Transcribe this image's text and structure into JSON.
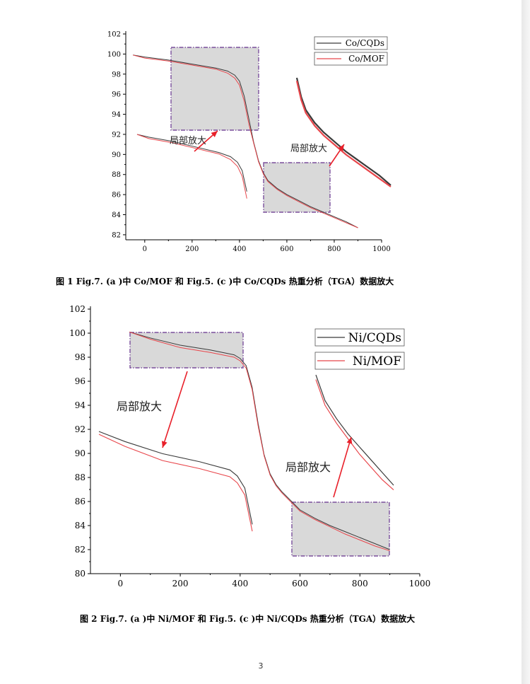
{
  "figures": [
    {
      "caption": "图 1    Fig.7. (a )中 Co/MOF 和 Fig.5. (c )中 Co/CQDs 热重分析（TGA）数据放大",
      "annotation_label": "局部放大",
      "chart_data": {
        "type": "line",
        "title": "",
        "xlabel": "",
        "ylabel": "",
        "xlim": [
          -80,
          1000
        ],
        "ylim": [
          81.5,
          102
        ],
        "x_ticks": [
          "0",
          "200",
          "400",
          "600",
          "800",
          "1000"
        ],
        "y_ticks": [
          "82",
          "84",
          "86",
          "88",
          "90",
          "92",
          "94",
          "96",
          "98",
          "100",
          "102"
        ],
        "legend_position": "top-right",
        "series": [
          {
            "name": "Co/CQDs",
            "color": "#3a3a3a",
            "x": [
              -50,
              0,
              100,
              200,
              300,
              350,
              380,
              400,
              420,
              440,
              460,
              470,
              480,
              500,
              520,
              560,
              600,
              650,
              700,
              750,
              800,
              850,
              900
            ],
            "y": [
              99.9,
              99.7,
              99.4,
              99.0,
              98.6,
              98.3,
              97.9,
              97.3,
              95.8,
              93.5,
              91.2,
              90.3,
              89.4,
              88.2,
              87.4,
              86.6,
              86.0,
              85.4,
              84.8,
              84.3,
              83.8,
              83.3,
              82.7
            ]
          },
          {
            "name": "Co/MOF",
            "color": "#e8464b",
            "x": [
              -50,
              0,
              100,
              200,
              300,
              350,
              380,
              400,
              420,
              440,
              460,
              470,
              480,
              500,
              520,
              560,
              600,
              650,
              700,
              750,
              800,
              850,
              900
            ],
            "y": [
              99.9,
              99.6,
              99.3,
              98.9,
              98.5,
              98.1,
              97.6,
              96.9,
              95.3,
              93.0,
              91.1,
              90.2,
              89.3,
              88.1,
              87.3,
              86.5,
              85.9,
              85.3,
              84.7,
              84.2,
              83.7,
              83.2,
              82.7
            ]
          }
        ]
      }
    },
    {
      "caption": "图 2    Fig.7. (a )中 Ni/MOF 和 Fig.5. (c )中 Ni/CQDs 热重分析（TGA）数据放大",
      "annotation_label": "局部放大",
      "chart_data": {
        "type": "line",
        "title": "",
        "xlabel": "",
        "ylabel": "",
        "xlim": [
          -100,
          1000
        ],
        "ylim": [
          80,
          102
        ],
        "x_ticks": [
          "0",
          "200",
          "400",
          "600",
          "800",
          "1000"
        ],
        "y_ticks": [
          "80",
          "82",
          "84",
          "86",
          "88",
          "90",
          "92",
          "94",
          "96",
          "98",
          "100",
          "102"
        ],
        "legend_position": "top-right",
        "series": [
          {
            "name": "Ni/CQDs",
            "color": "#3a3a3a",
            "x": [
              30,
              100,
              200,
              300,
              380,
              400,
              420,
              440,
              460,
              480,
              500,
              520,
              540,
              560,
              600,
              650,
              700,
              750,
              800,
              850,
              900
            ],
            "y": [
              100.1,
              99.6,
              99.0,
              98.6,
              98.2,
              97.9,
              97.3,
              95.5,
              92.5,
              89.9,
              88.3,
              87.4,
              86.8,
              86.3,
              85.3,
              84.6,
              84.0,
              83.5,
              83.0,
              82.5,
              82.0
            ]
          },
          {
            "name": "Ni/MOF",
            "color": "#e8464b",
            "x": [
              30,
              100,
              200,
              300,
              380,
              400,
              420,
              440,
              460,
              480,
              500,
              520,
              540,
              560,
              600,
              650,
              700,
              750,
              800,
              850,
              900
            ],
            "y": [
              100.1,
              99.5,
              98.8,
              98.4,
              98.0,
              97.7,
              97.1,
              95.3,
              92.3,
              89.8,
              88.2,
              87.3,
              86.7,
              86.2,
              85.2,
              84.5,
              83.9,
              83.3,
              82.8,
              82.3,
              81.9
            ]
          }
        ]
      }
    }
  ],
  "page_number": "3"
}
